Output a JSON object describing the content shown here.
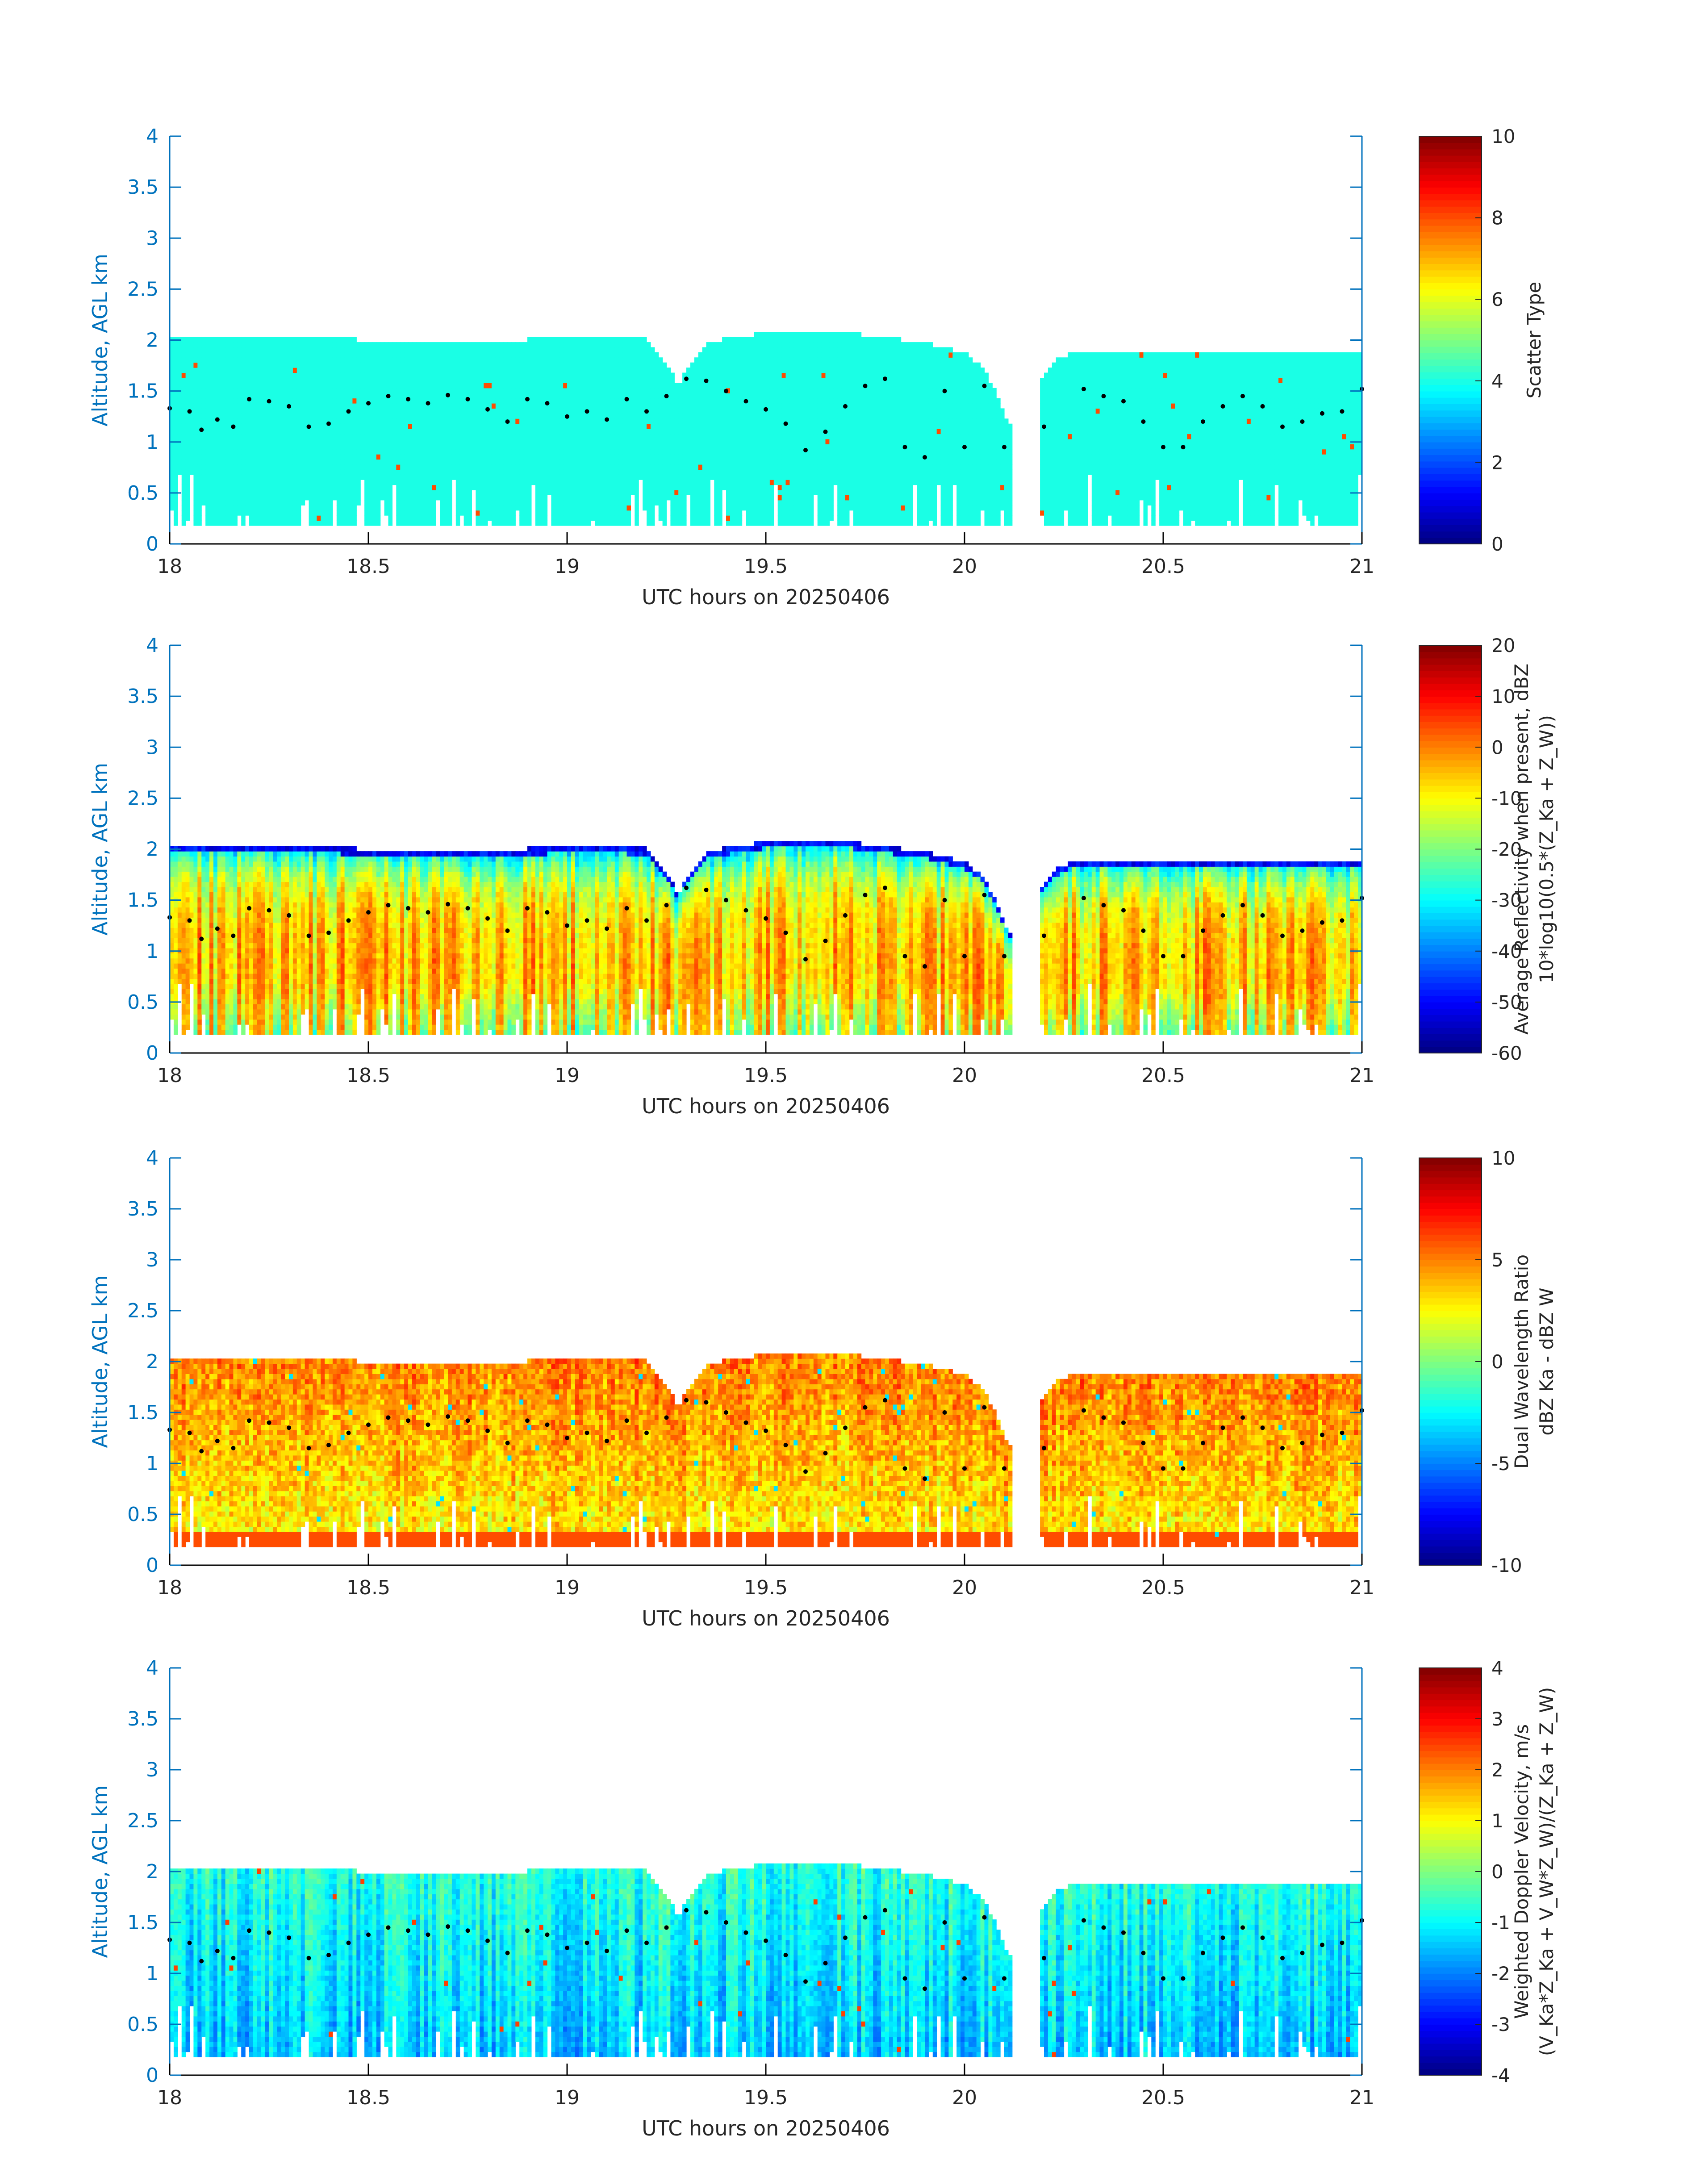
{
  "figure": {
    "xlabel": "UTC hours on 20250406",
    "ylabel": "Altitude, AGL km",
    "axis_color": "#0072BD",
    "colormap": "jet"
  },
  "chart_data": [
    {
      "type": "heatmap",
      "xlabel": "UTC hours on 20250406",
      "ylabel": "Altitude, AGL km",
      "xlim": [
        18,
        21
      ],
      "ylim": [
        0,
        4
      ],
      "xticks": [
        "18",
        "18.5",
        "19",
        "19.5",
        "20",
        "20.5",
        "21"
      ],
      "yticks": [
        "0",
        "0.5",
        "1",
        "1.5",
        "2",
        "2.5",
        "3",
        "3.5",
        "4"
      ],
      "colorbar": {
        "label_lines": [
          "Scatter Type"
        ],
        "range": [
          0,
          10
        ],
        "ticks": [
          "0",
          "2",
          "4",
          "6",
          "8",
          "10"
        ]
      },
      "field": "scatter_type",
      "dominant_value": 4
    },
    {
      "type": "heatmap",
      "xlabel": "UTC hours on 20250406",
      "ylabel": "Altitude, AGL km",
      "xlim": [
        18,
        21
      ],
      "ylim": [
        0,
        4
      ],
      "xticks": [
        "18",
        "18.5",
        "19",
        "19.5",
        "20",
        "20.5",
        "21"
      ],
      "yticks": [
        "0",
        "0.5",
        "1",
        "1.5",
        "2",
        "2.5",
        "3",
        "3.5",
        "4"
      ],
      "colorbar": {
        "label_lines": [
          "Average Reflectivity when present, dBZ",
          "10*log10(0.5*(Z_Ka + Z_W))"
        ],
        "range": [
          -60,
          20
        ],
        "ticks": [
          "-60",
          "-50",
          "-40",
          "-30",
          "-20",
          "-10",
          "0",
          "10",
          "20"
        ]
      },
      "field": "reflectivity"
    },
    {
      "type": "heatmap",
      "xlabel": "UTC hours on 20250406",
      "ylabel": "Altitude, AGL km",
      "xlim": [
        18,
        21
      ],
      "ylim": [
        0,
        4
      ],
      "xticks": [
        "18",
        "18.5",
        "19",
        "19.5",
        "20",
        "20.5",
        "21"
      ],
      "yticks": [
        "0",
        "0.5",
        "1",
        "1.5",
        "2",
        "2.5",
        "3",
        "3.5",
        "4"
      ],
      "colorbar": {
        "label_lines": [
          "Dual Wavelength Ratio",
          "dBZ Ka - dBZ W"
        ],
        "range": [
          -10,
          10
        ],
        "ticks": [
          "-10",
          "-5",
          "0",
          "5",
          "10"
        ]
      },
      "field": "dwr"
    },
    {
      "type": "heatmap",
      "xlabel": "UTC hours on 20250406",
      "ylabel": "Altitude, AGL km",
      "xlim": [
        18,
        21
      ],
      "ylim": [
        0,
        4
      ],
      "xticks": [
        "18",
        "18.5",
        "19",
        "19.5",
        "20",
        "20.5",
        "21"
      ],
      "yticks": [
        "0",
        "0.5",
        "1",
        "1.5",
        "2",
        "2.5",
        "3",
        "3.5",
        "4"
      ],
      "colorbar": {
        "label_lines": [
          "Weighted Doppler Velocity, m/s",
          "(V_Ka*Z_Ka + V_W*Z_W)/(Z_Ka + Z_W)"
        ],
        "range": [
          -4,
          4
        ],
        "ticks": [
          "-4",
          "-3",
          "-2",
          "-1",
          "0",
          "1",
          "2",
          "3",
          "4"
        ]
      },
      "field": "velocity"
    }
  ],
  "cloud": {
    "hour_start": 18,
    "hour_end": 21,
    "cloud_top_km": [
      [
        18.0,
        2.03
      ],
      [
        18.1,
        2.02
      ],
      [
        18.2,
        2.02
      ],
      [
        18.3,
        2.0
      ],
      [
        18.4,
        2.0
      ],
      [
        18.5,
        1.97
      ],
      [
        18.6,
        1.96
      ],
      [
        18.7,
        1.96
      ],
      [
        18.8,
        1.96
      ],
      [
        18.9,
        1.98
      ],
      [
        19.0,
        2.0
      ],
      [
        19.1,
        2.0
      ],
      [
        19.2,
        1.98
      ],
      [
        19.28,
        1.55
      ],
      [
        19.35,
        1.95
      ],
      [
        19.5,
        2.05
      ],
      [
        19.6,
        2.08
      ],
      [
        19.7,
        2.05
      ],
      [
        19.8,
        2.0
      ],
      [
        19.9,
        1.95
      ],
      [
        20.0,
        1.85
      ],
      [
        20.05,
        1.7
      ],
      [
        20.12,
        1.1
      ],
      [
        20.18,
        1.5
      ],
      [
        20.22,
        1.75
      ],
      [
        20.28,
        1.88
      ],
      [
        20.4,
        1.88
      ],
      [
        20.5,
        1.88
      ],
      [
        20.6,
        1.88
      ],
      [
        20.7,
        1.88
      ],
      [
        20.8,
        1.88
      ],
      [
        20.9,
        1.88
      ],
      [
        21.0,
        1.88
      ]
    ],
    "cloud_base_km": 0.18,
    "gaps_hours": [
      [
        20.12,
        20.19
      ]
    ],
    "boundary_dots_km": [
      [
        18.0,
        1.33
      ],
      [
        18.05,
        1.3
      ],
      [
        18.08,
        1.12
      ],
      [
        18.12,
        1.22
      ],
      [
        18.16,
        1.15
      ],
      [
        18.2,
        1.42
      ],
      [
        18.25,
        1.4
      ],
      [
        18.3,
        1.35
      ],
      [
        18.35,
        1.15
      ],
      [
        18.4,
        1.18
      ],
      [
        18.45,
        1.3
      ],
      [
        18.5,
        1.38
      ],
      [
        18.55,
        1.45
      ],
      [
        18.6,
        1.42
      ],
      [
        18.65,
        1.38
      ],
      [
        18.7,
        1.46
      ],
      [
        18.75,
        1.42
      ],
      [
        18.8,
        1.32
      ],
      [
        18.85,
        1.2
      ],
      [
        18.9,
        1.42
      ],
      [
        18.95,
        1.38
      ],
      [
        19.0,
        1.25
      ],
      [
        19.05,
        1.3
      ],
      [
        19.1,
        1.22
      ],
      [
        19.15,
        1.42
      ],
      [
        19.2,
        1.3
      ],
      [
        19.25,
        1.45
      ],
      [
        19.3,
        1.62
      ],
      [
        19.35,
        1.6
      ],
      [
        19.4,
        1.5
      ],
      [
        19.45,
        1.4
      ],
      [
        19.5,
        1.32
      ],
      [
        19.55,
        1.18
      ],
      [
        19.6,
        0.92
      ],
      [
        19.65,
        1.1
      ],
      [
        19.7,
        1.35
      ],
      [
        19.75,
        1.55
      ],
      [
        19.8,
        1.62
      ],
      [
        19.85,
        0.95
      ],
      [
        19.9,
        0.85
      ],
      [
        19.95,
        1.5
      ],
      [
        20.0,
        0.95
      ],
      [
        20.05,
        1.55
      ],
      [
        20.1,
        0.95
      ],
      [
        20.2,
        1.15
      ],
      [
        20.3,
        1.52
      ],
      [
        20.35,
        1.45
      ],
      [
        20.4,
        1.4
      ],
      [
        20.45,
        1.2
      ],
      [
        20.5,
        0.95
      ],
      [
        20.55,
        0.95
      ],
      [
        20.6,
        1.2
      ],
      [
        20.65,
        1.35
      ],
      [
        20.7,
        1.45
      ],
      [
        20.75,
        1.35
      ],
      [
        20.8,
        1.15
      ],
      [
        20.85,
        1.2
      ],
      [
        20.9,
        1.28
      ],
      [
        20.95,
        1.3
      ],
      [
        21.0,
        1.52
      ]
    ]
  }
}
